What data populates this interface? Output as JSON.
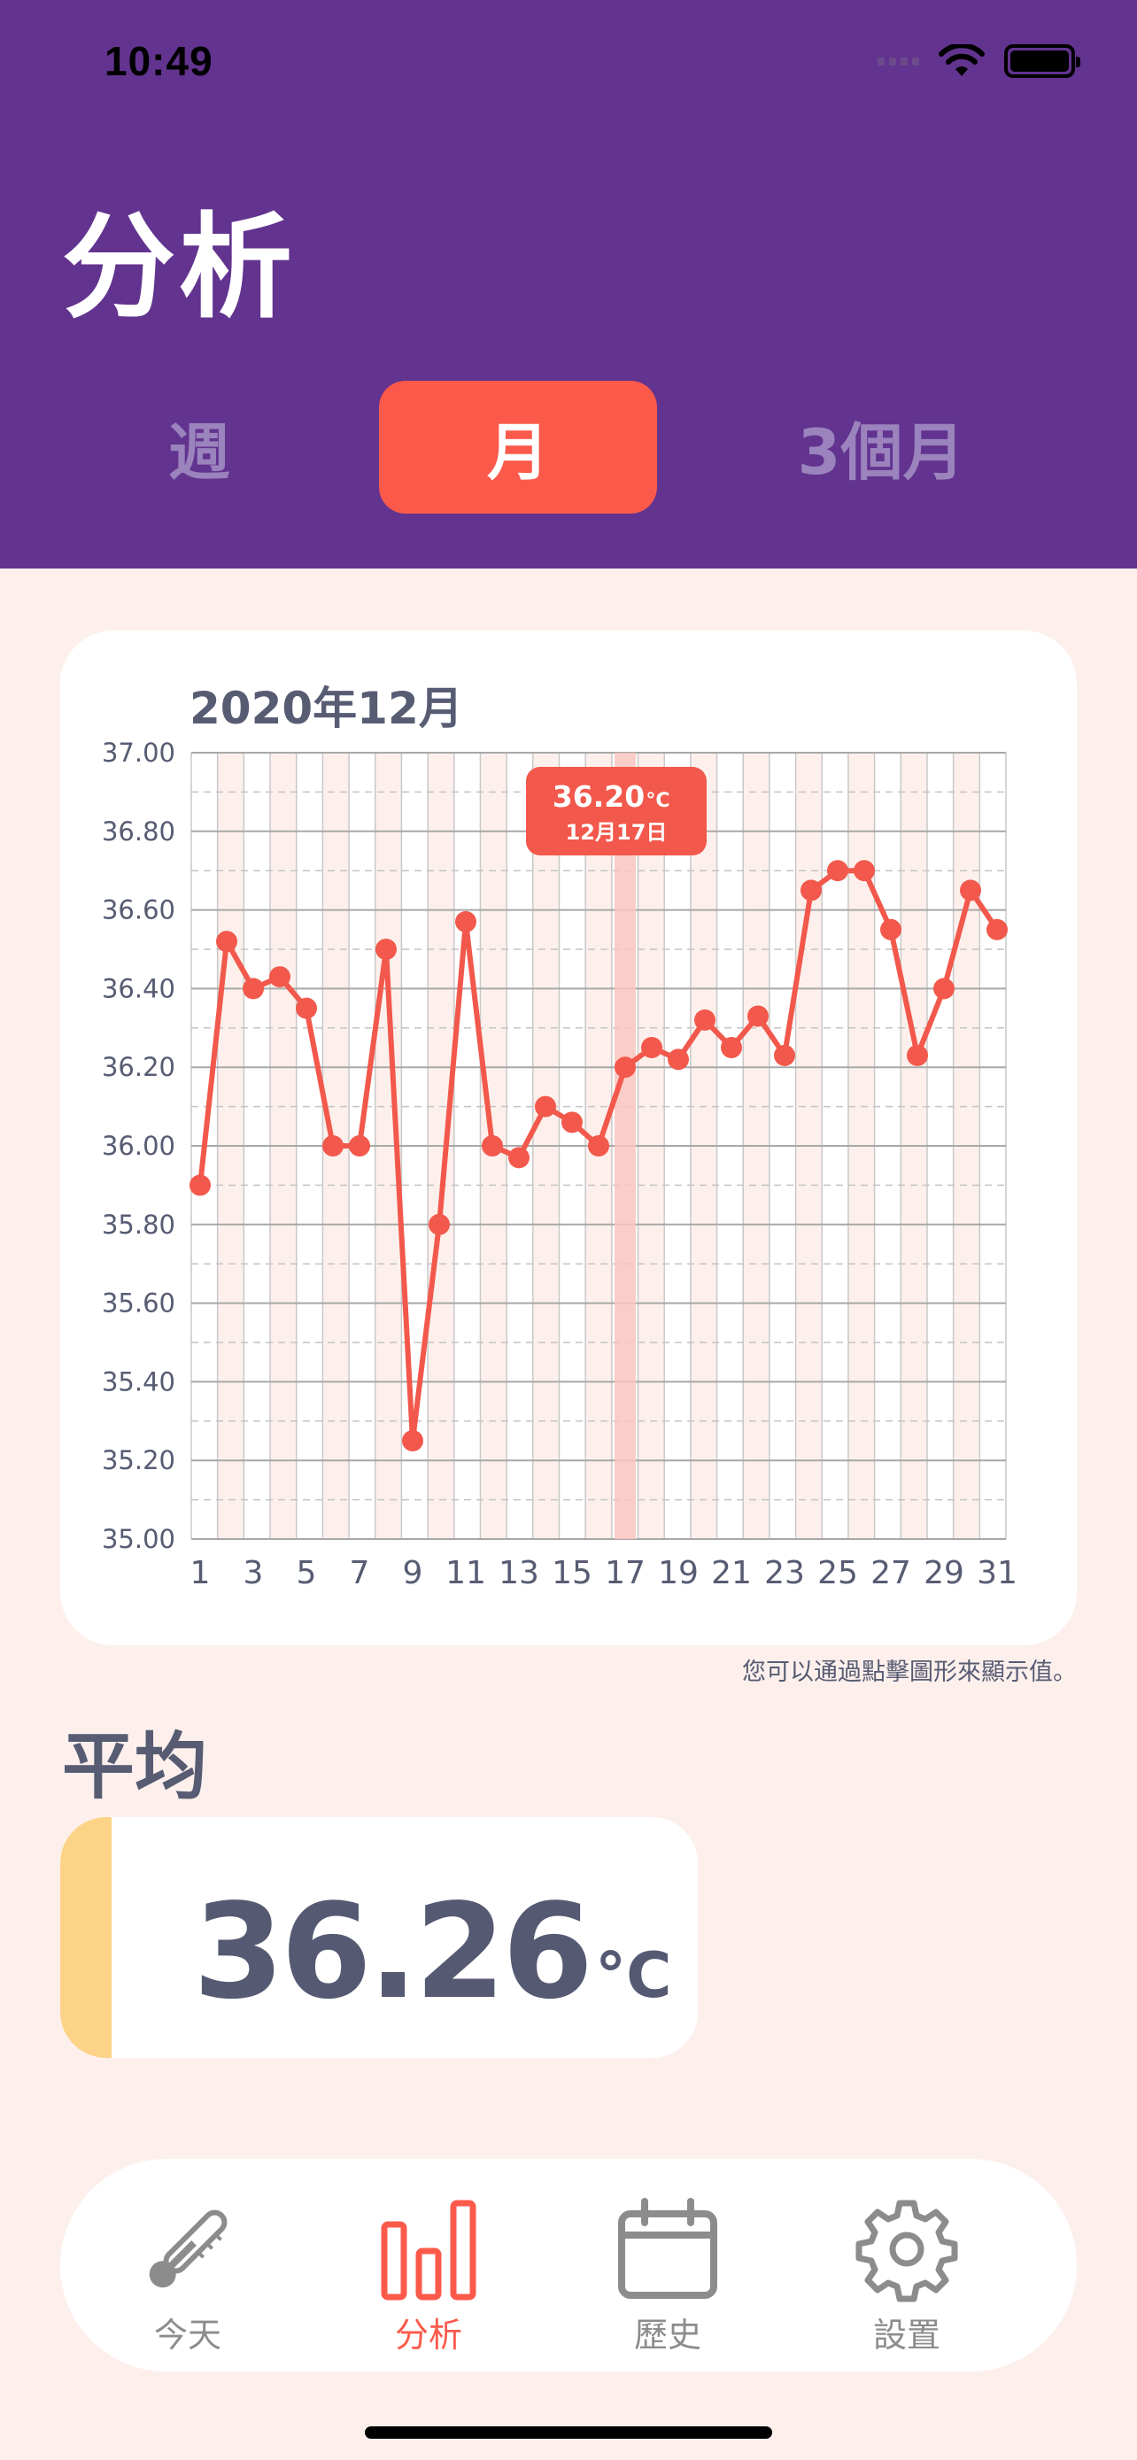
{
  "status": {
    "time": "10:49"
  },
  "header": {
    "title": "分析",
    "segments": [
      "週",
      "月",
      "3個月"
    ],
    "selected": "月"
  },
  "chart_card": {
    "title": "2020年12月",
    "hint": "您可以通過點擊圖形來顯示值。",
    "tooltip": {
      "value": "36.20",
      "unit": "°C",
      "date": "12月17日"
    }
  },
  "chart_data": {
    "type": "line",
    "title": "2020年12月",
    "x": [
      1,
      2,
      3,
      4,
      5,
      6,
      7,
      8,
      9,
      10,
      11,
      12,
      13,
      14,
      15,
      16,
      17,
      18,
      19,
      20,
      21,
      22,
      23,
      24,
      25,
      26,
      27,
      28,
      29,
      30,
      31
    ],
    "x_tick_labels": [
      "1",
      "3",
      "5",
      "7",
      "9",
      "11",
      "13",
      "15",
      "17",
      "19",
      "21",
      "23",
      "25",
      "27",
      "29",
      "31"
    ],
    "y_tick_labels": [
      "37.00",
      "36.80",
      "36.60",
      "36.40",
      "36.20",
      "36.00",
      "35.80",
      "35.60",
      "35.40",
      "35.20",
      "35.00"
    ],
    "series": [
      {
        "values": [
          35.9,
          36.52,
          36.4,
          36.43,
          36.35,
          36.0,
          36.0,
          36.5,
          35.25,
          35.8,
          36.57,
          36.0,
          35.97,
          36.1,
          36.06,
          36.0,
          36.2,
          36.25,
          36.22,
          36.32,
          36.25,
          36.33,
          36.23,
          36.65,
          36.7,
          36.7,
          36.55,
          36.23,
          36.4,
          36.65,
          36.55
        ],
        "color": "#f2584b"
      }
    ],
    "ylim": [
      35.0,
      37.0
    ],
    "xlim": [
      1,
      31
    ],
    "selected_x": 17,
    "grid": true
  },
  "average": {
    "label": "平均",
    "value": "36.26",
    "unit": "°C"
  },
  "tabbar": {
    "items": [
      {
        "label": "今天",
        "icon": "thermometer-icon"
      },
      {
        "label": "分析",
        "icon": "bar-chart-icon"
      },
      {
        "label": "歷史",
        "icon": "calendar-icon"
      },
      {
        "label": "設置",
        "icon": "gear-icon"
      }
    ],
    "active": "分析"
  },
  "colors": {
    "header": "#62338f",
    "accent": "#fb5a4b",
    "background": "#fdf0ec",
    "average_accent": "#fdd487"
  }
}
